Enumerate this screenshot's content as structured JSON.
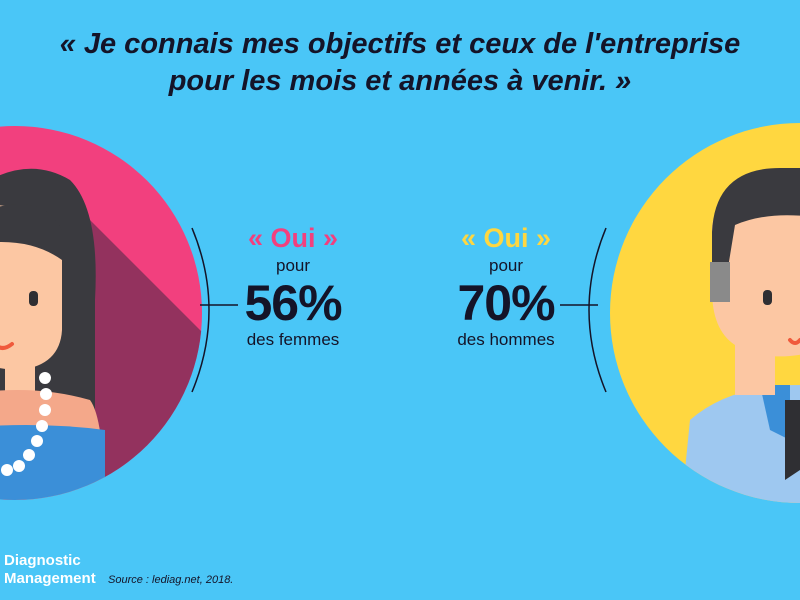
{
  "headline": {
    "line1": "« Je connais mes objectifs et ceux de l'entreprise",
    "line2": "pour les mois et années à venir. »"
  },
  "women": {
    "answer": "« Oui »",
    "pour": "pour",
    "percent": "56%",
    "label": "des femmes",
    "accent_color": "#f2407e",
    "circle_color": "#f2407e"
  },
  "men": {
    "answer": "« Oui »",
    "pour": "pour",
    "percent": "70%",
    "label": "des hommes",
    "accent_color": "#ffd740",
    "circle_color": "#ffd740"
  },
  "footer": {
    "brand_line1": "Diagnostic",
    "brand_line2": "Management",
    "source": "Source : lediag.net, 2018."
  },
  "colors": {
    "background": "#4ac6f7",
    "text": "#141428"
  }
}
